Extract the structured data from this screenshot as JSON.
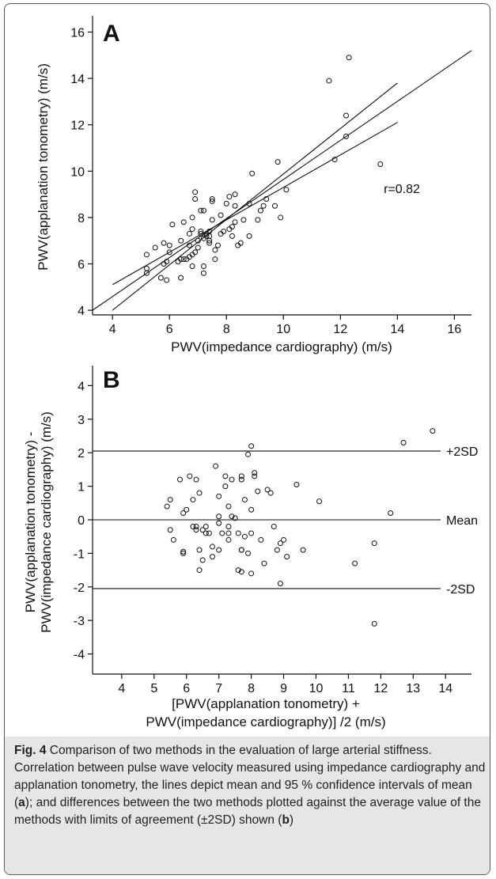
{
  "chart_data": [
    {
      "type": "scatter",
      "panel_label": "A",
      "xlabel": "PWV(impedance cardiography) (m/s)",
      "ylabel": "PWV(applanation tonometry) (m/s)",
      "xlim": [
        3.3,
        16.6
      ],
      "ylim": [
        3.8,
        16.7
      ],
      "xticks": [
        4,
        6,
        8,
        10,
        12,
        14,
        16
      ],
      "yticks": [
        4,
        6,
        8,
        10,
        12,
        14,
        16
      ],
      "annotation": "r=0.82",
      "regression_line": [
        [
          3.3,
          4.0
        ],
        [
          16.6,
          15.2
        ]
      ],
      "confidence_upper": [
        [
          4.0,
          4.0
        ],
        [
          14.0,
          13.8
        ]
      ],
      "confidence_lower": [
        [
          4.0,
          5.1
        ],
        [
          14.0,
          12.1
        ]
      ],
      "points": [
        [
          5.2,
          5.6
        ],
        [
          5.2,
          5.8
        ],
        [
          5.2,
          6.4
        ],
        [
          5.5,
          6.7
        ],
        [
          5.7,
          5.4
        ],
        [
          5.8,
          6.0
        ],
        [
          5.8,
          6.9
        ],
        [
          5.9,
          5.3
        ],
        [
          5.9,
          6.1
        ],
        [
          6.0,
          6.5
        ],
        [
          6.0,
          6.8
        ],
        [
          6.1,
          7.7
        ],
        [
          6.3,
          6.1
        ],
        [
          6.4,
          5.4
        ],
        [
          6.4,
          6.2
        ],
        [
          6.4,
          7.0
        ],
        [
          6.5,
          7.8
        ],
        [
          6.5,
          6.2
        ],
        [
          6.6,
          6.2
        ],
        [
          6.7,
          6.3
        ],
        [
          6.7,
          6.8
        ],
        [
          6.7,
          7.3
        ],
        [
          6.8,
          5.9
        ],
        [
          6.8,
          6.4
        ],
        [
          6.8,
          7.5
        ],
        [
          6.8,
          8.0
        ],
        [
          6.9,
          8.8
        ],
        [
          6.9,
          9.1
        ],
        [
          6.9,
          6.5
        ],
        [
          7.0,
          6.7
        ],
        [
          7.0,
          7.0
        ],
        [
          7.1,
          7.4
        ],
        [
          7.1,
          7.3
        ],
        [
          7.1,
          8.3
        ],
        [
          7.2,
          5.6
        ],
        [
          7.2,
          5.9
        ],
        [
          7.2,
          7.1
        ],
        [
          7.2,
          8.3
        ],
        [
          7.3,
          7.2
        ],
        [
          7.3,
          7.3
        ],
        [
          7.4,
          7.2
        ],
        [
          7.4,
          7.0
        ],
        [
          7.4,
          6.9
        ],
        [
          7.4,
          7.4
        ],
        [
          7.5,
          8.7
        ],
        [
          7.5,
          8.8
        ],
        [
          7.5,
          7.9
        ],
        [
          7.6,
          6.2
        ],
        [
          7.6,
          6.6
        ],
        [
          7.7,
          6.8
        ],
        [
          7.8,
          7.3
        ],
        [
          7.8,
          8.1
        ],
        [
          7.9,
          7.4
        ],
        [
          8.0,
          8.6
        ],
        [
          8.1,
          7.5
        ],
        [
          8.1,
          8.9
        ],
        [
          8.2,
          7.2
        ],
        [
          8.2,
          7.6
        ],
        [
          8.3,
          8.5
        ],
        [
          8.3,
          7.8
        ],
        [
          8.3,
          9.0
        ],
        [
          8.4,
          6.8
        ],
        [
          8.5,
          6.9
        ],
        [
          8.6,
          7.9
        ],
        [
          8.8,
          7.2
        ],
        [
          8.8,
          8.6
        ],
        [
          8.9,
          9.9
        ],
        [
          9.1,
          7.9
        ],
        [
          9.2,
          8.3
        ],
        [
          9.3,
          8.5
        ],
        [
          9.4,
          8.8
        ],
        [
          9.7,
          8.5
        ],
        [
          9.8,
          10.4
        ],
        [
          9.9,
          8.0
        ],
        [
          10.1,
          9.2
        ],
        [
          11.6,
          13.9
        ],
        [
          11.8,
          10.5
        ],
        [
          12.2,
          12.4
        ],
        [
          12.2,
          11.5
        ],
        [
          12.3,
          14.9
        ],
        [
          13.4,
          10.3
        ]
      ]
    },
    {
      "type": "scatter",
      "panel_label": "B",
      "xlabel_line1": "[PWV(applanation tonometry) +",
      "xlabel_line2": "PWV(impedance cardiography)] /2 (m/s)",
      "ylabel_line1": "PWV(applanation tonometry) -",
      "ylabel_line2": "PWV(impedance cardiography) (m/s)",
      "xlim": [
        3.1,
        14.8
      ],
      "ylim": [
        -4.6,
        4.6
      ],
      "xticks": [
        4,
        5,
        6,
        7,
        8,
        9,
        10,
        11,
        12,
        13,
        14
      ],
      "yticks": [
        -4,
        -3,
        -2,
        -1,
        0,
        1,
        2,
        3,
        4
      ],
      "reference_lines": [
        {
          "label": "+2SD",
          "y": 2.05
        },
        {
          "label": "Mean",
          "y": 0.0
        },
        {
          "label": "-2SD",
          "y": -2.05
        }
      ],
      "points": [
        [
          5.4,
          0.4
        ],
        [
          5.5,
          0.6
        ],
        [
          5.5,
          -0.3
        ],
        [
          5.6,
          -0.6
        ],
        [
          5.8,
          1.2
        ],
        [
          5.9,
          -0.95
        ],
        [
          5.9,
          -1.0
        ],
        [
          5.9,
          0.2
        ],
        [
          6.0,
          0.3
        ],
        [
          6.1,
          1.3
        ],
        [
          6.2,
          0.6
        ],
        [
          6.3,
          1.2
        ],
        [
          6.2,
          -0.2
        ],
        [
          6.3,
          -0.3
        ],
        [
          6.3,
          -0.2
        ],
        [
          6.4,
          0.8
        ],
        [
          6.4,
          -1.5
        ],
        [
          6.4,
          -0.9
        ],
        [
          6.5,
          -0.3
        ],
        [
          6.5,
          -1.2
        ],
        [
          6.6,
          -0.4
        ],
        [
          6.6,
          -0.2
        ],
        [
          6.7,
          -0.4
        ],
        [
          6.8,
          -1.1
        ],
        [
          6.8,
          -0.8
        ],
        [
          6.9,
          1.6
        ],
        [
          7.0,
          0.1
        ],
        [
          7.0,
          -0.9
        ],
        [
          7.0,
          -0.1
        ],
        [
          7.0,
          0.7
        ],
        [
          7.1,
          -0.4
        ],
        [
          7.2,
          1.0
        ],
        [
          7.2,
          1.3
        ],
        [
          7.3,
          0.4
        ],
        [
          7.3,
          -0.2
        ],
        [
          7.3,
          -0.4
        ],
        [
          7.3,
          -0.6
        ],
        [
          7.4,
          0.1
        ],
        [
          7.4,
          1.2
        ],
        [
          7.5,
          0.05
        ],
        [
          7.6,
          -1.5
        ],
        [
          7.6,
          -0.4
        ],
        [
          7.7,
          -0.9
        ],
        [
          7.7,
          -0.9
        ],
        [
          7.7,
          1.3
        ],
        [
          7.7,
          1.2
        ],
        [
          7.8,
          -0.5
        ],
        [
          7.7,
          -1.55
        ],
        [
          7.8,
          0.6
        ],
        [
          7.9,
          1.95
        ],
        [
          7.9,
          -1.0
        ],
        [
          8.0,
          0.3
        ],
        [
          8.0,
          2.2
        ],
        [
          8.0,
          -1.6
        ],
        [
          8.0,
          -0.4
        ],
        [
          8.1,
          1.3
        ],
        [
          8.1,
          1.4
        ],
        [
          8.2,
          0.85
        ],
        [
          8.3,
          -0.6
        ],
        [
          8.4,
          -1.3
        ],
        [
          8.5,
          0.9
        ],
        [
          8.6,
          0.8
        ],
        [
          8.7,
          -0.2
        ],
        [
          8.8,
          -0.9
        ],
        [
          8.9,
          -0.7
        ],
        [
          8.9,
          -1.9
        ],
        [
          9.0,
          -0.6
        ],
        [
          9.1,
          -1.1
        ],
        [
          9.4,
          1.05
        ],
        [
          9.6,
          -0.9
        ],
        [
          10.1,
          0.55
        ],
        [
          11.2,
          -1.3
        ],
        [
          11.8,
          -0.7
        ],
        [
          11.8,
          -3.1
        ],
        [
          12.3,
          0.2
        ],
        [
          12.7,
          2.3
        ],
        [
          13.6,
          2.65
        ]
      ]
    }
  ],
  "caption": {
    "fig_label": "Fig. 4",
    "text_before_a": "Comparison of two methods in the evaluation of large arterial stiffness. Correlation between pulse wave velocity measured using impedance cardiography and applanation tonometry, the lines depict mean and 95 % confidence intervals of mean (",
    "panel_a": "a",
    "text_between": "); and differences between the two methods plotted against the average value of the methods with limits of agreement (±2SD) shown (",
    "panel_b": "b",
    "text_end": ")"
  }
}
